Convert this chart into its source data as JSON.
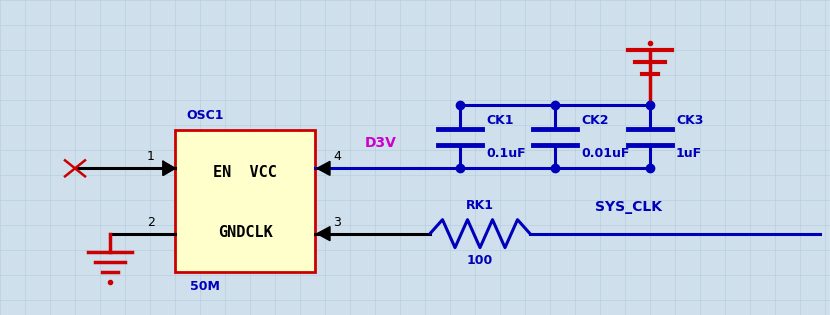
{
  "bg_color": "#cfe0ec",
  "grid_color": "#b8cfe0",
  "box_color": "#ffffcc",
  "box_edge_color": "#cc0000",
  "wire_color": "#0000bb",
  "black_wire": "#000000",
  "red_color": "#cc0000",
  "magenta_color": "#cc00cc",
  "blue_label": "#0000bb",
  "osc1_label": "OSC1",
  "freq_label": "50M",
  "box_text_top": "EN  VCC",
  "box_text_bot": "GNDCLK",
  "d3v_label": "D3V",
  "rk1_label": "RK1",
  "rk1_val": "100",
  "sys_clk_label": "SYS_CLK",
  "ck1_label": "CK1",
  "ck1_val": "0.1uF",
  "ck2_label": "CK2",
  "ck2_val": "0.01uF",
  "ck3_label": "CK3",
  "ck3_val": "1uF",
  "pin1": "1",
  "pin2": "2",
  "pin3": "3",
  "pin4": "4"
}
